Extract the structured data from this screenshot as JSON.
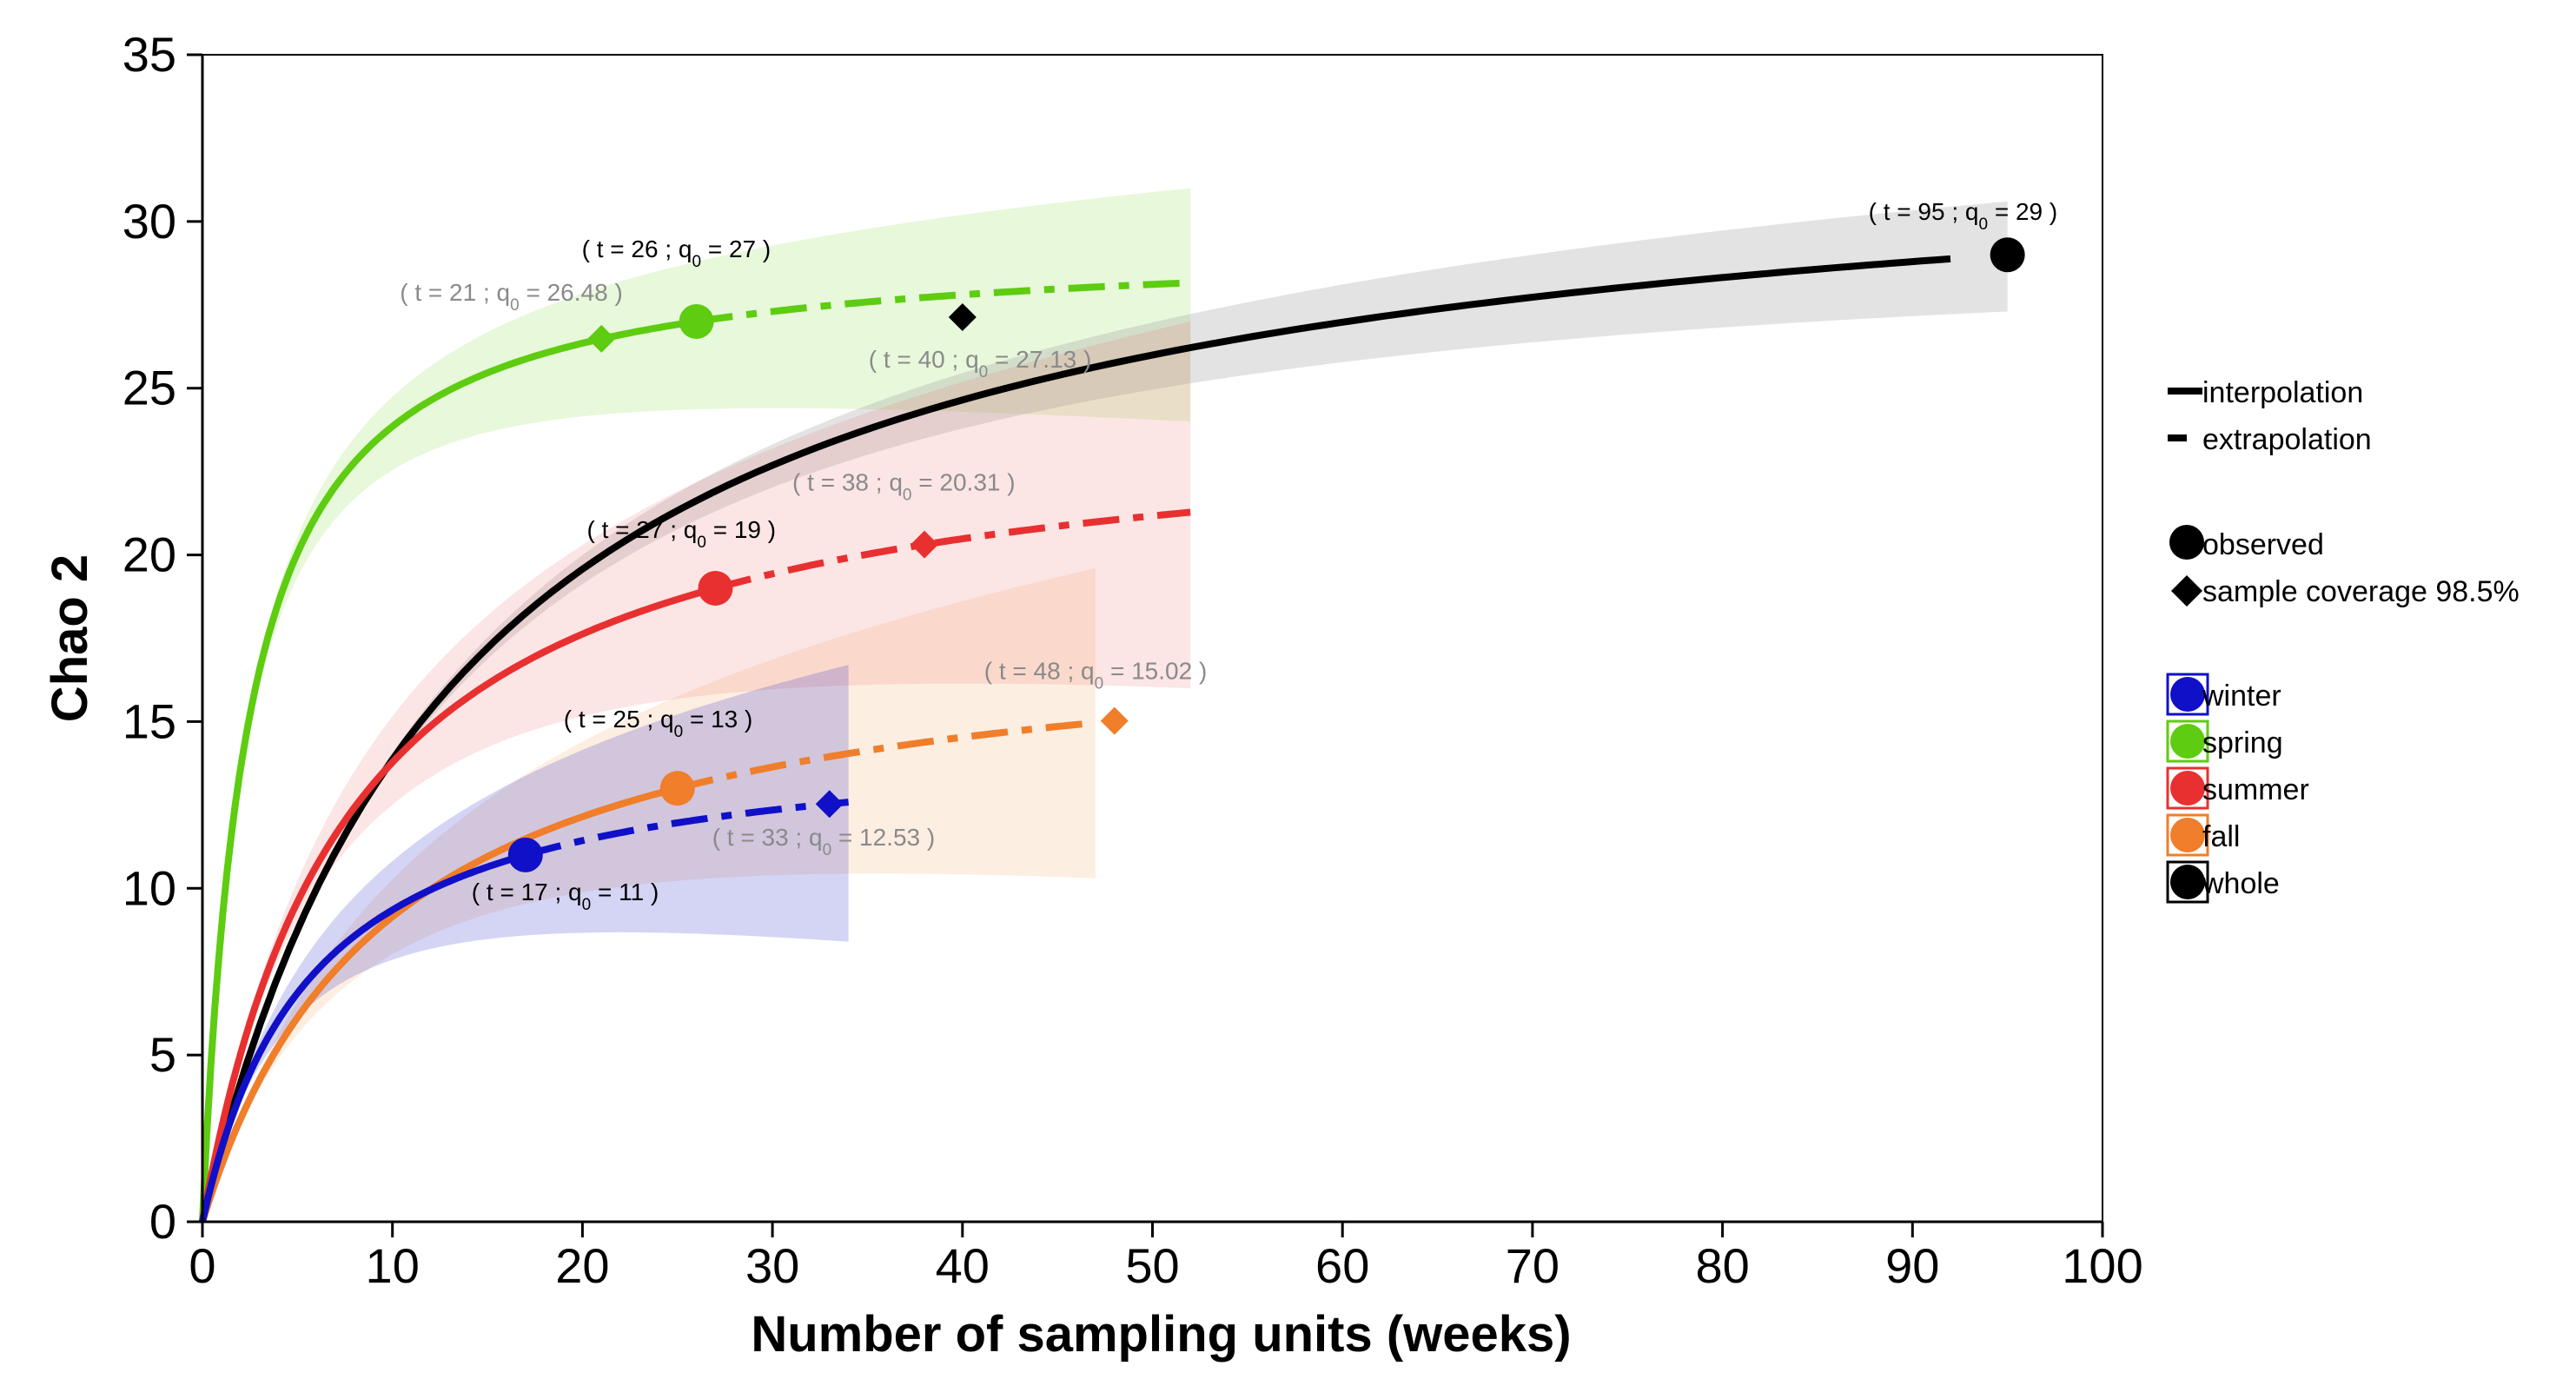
{
  "chart_data": {
    "type": "line",
    "title": "",
    "xlabel": "Number of sampling units (weeks)",
    "ylabel": "Chao 2",
    "xlim": [
      0,
      100
    ],
    "ylim": [
      0,
      35
    ],
    "xticks": [
      0,
      10,
      20,
      30,
      40,
      50,
      60,
      70,
      80,
      90,
      100
    ],
    "yticks": [
      0,
      5,
      10,
      15,
      20,
      25,
      30,
      35
    ],
    "series": [
      {
        "name": "winter",
        "color": "#1010c8",
        "band_color": "#1010c8",
        "observed": {
          "t": 17,
          "q0": 11
        },
        "max_t": 34,
        "coverage": {
          "t": 33,
          "q0": 12.53
        },
        "band": {
          "lower_end": 8.4,
          "upper_end": 16.7
        },
        "obs_label": "( t = 17 ;   q",
        "obs_value": " = 11 )",
        "cov_label": "( t = 33 ;   q",
        "cov_value": " = 12.53 )"
      },
      {
        "name": "spring",
        "color": "#5ecc10",
        "band_color": "#7fd63a",
        "observed": {
          "t": 26,
          "q0": 27
        },
        "max_t": 52,
        "coverage": {
          "t": 21,
          "q0": 26.48
        },
        "band": {
          "lower_end": 24.0,
          "upper_end": 31.0
        },
        "obs_label": "( t = 26 ;   q",
        "obs_value": " = 27 )",
        "cov_label": "( t = 21 ;   q",
        "cov_value": " = 26.48 )"
      },
      {
        "name": "summer",
        "color": "#e83030",
        "band_color": "#f07070",
        "observed": {
          "t": 27,
          "q0": 19
        },
        "max_t": 52,
        "coverage": {
          "t": 38,
          "q0": 20.31
        },
        "band": {
          "lower_end": 16.0,
          "upper_end": 27.0
        },
        "obs_label": "( t = 27 ;   q",
        "obs_value": " = 19 )",
        "cov_label": "( t = 38 ;   q",
        "cov_value": " = 20.31 )"
      },
      {
        "name": "fall",
        "color": "#f07e2a",
        "band_color": "#f5a060",
        "observed": {
          "t": 25,
          "q0": 13
        },
        "max_t": 47,
        "coverage": {
          "t": 48,
          "q0": 15.02
        },
        "band": {
          "lower_end": 10.3,
          "upper_end": 19.6
        },
        "obs_label": "( t = 25 ;   q",
        "obs_value": " = 13 )",
        "cov_label": "( t = 48 ;   q",
        "cov_value": " = 15.02 )"
      },
      {
        "name": "whole",
        "color": "#000000",
        "band_color": "#9a9a9a",
        "observed": {
          "t": 95,
          "q0": 29
        },
        "max_t": 95,
        "coverage": {
          "t": 40,
          "q0": 27.13
        },
        "band": {
          "lower_end": 27.3,
          "upper_end": 30.6
        },
        "obs_label": "( t = 95 ;   q",
        "obs_value": " = 29 )",
        "cov_label": "( t = 40 ;   q",
        "cov_value": " = 27.13 )"
      }
    ],
    "legend": {
      "line_types": [
        "interpolation",
        "extrapolation"
      ],
      "point_types": [
        "observed",
        "sample coverage 98.5%"
      ],
      "groups": [
        "winter",
        "spring",
        "summer",
        "fall",
        "whole"
      ],
      "position": "right"
    }
  }
}
